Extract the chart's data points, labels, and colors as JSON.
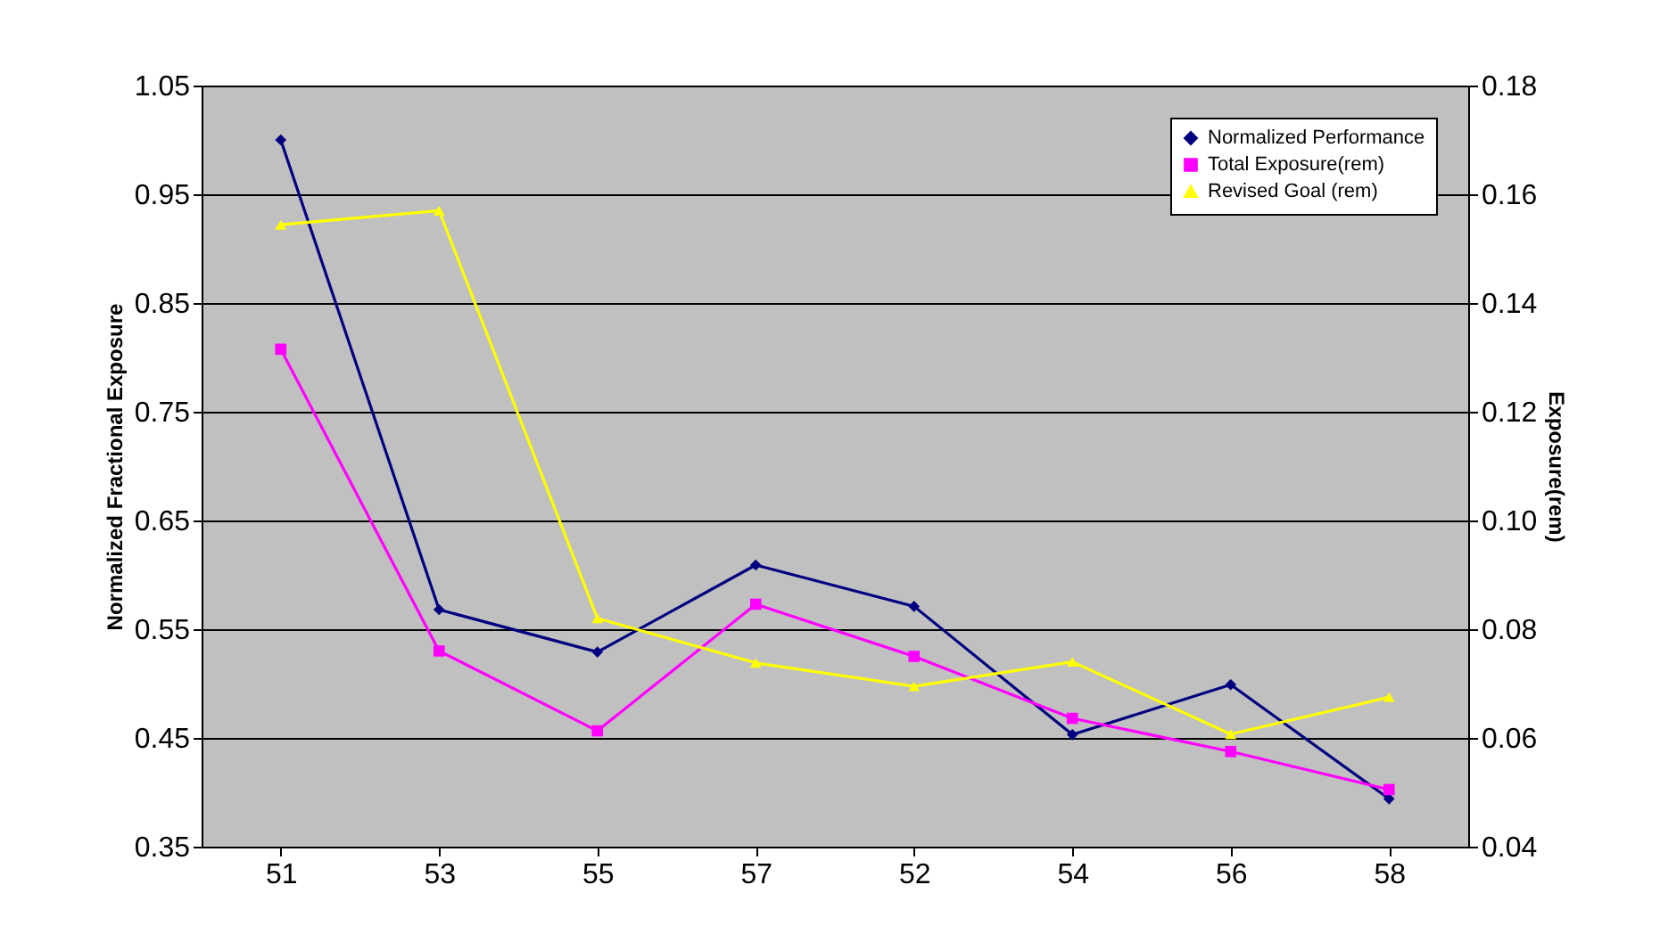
{
  "chart_data": {
    "type": "line",
    "xlabel": null,
    "ylabel": "Normalized Fractional Exposure",
    "y2label": "Exposure(rem)",
    "categories": [
      "51",
      "53",
      "55",
      "57",
      "52",
      "54",
      "56",
      "58"
    ],
    "series": [
      {
        "name": "Normalized Performance",
        "color": "#000080",
        "marker": "diamond",
        "axis": "y",
        "values": [
          1.0,
          0.568,
          0.529,
          0.609,
          0.571,
          0.453,
          0.499,
          0.394
        ]
      },
      {
        "name": "Total Exposure(rem)",
        "color": "#ff00ff",
        "marker": "square",
        "axis": "y2",
        "values": [
          0.1315,
          0.076,
          0.0613,
          0.0846,
          0.075,
          0.0636,
          0.0575,
          0.0505
        ]
      },
      {
        "name": "Revised Goal (rem)",
        "color": "#ffff00",
        "marker": "triangle",
        "axis": "y2",
        "values": [
          0.1544,
          0.157,
          0.082,
          0.0738,
          0.0695,
          0.074,
          0.0607,
          0.0675
        ]
      }
    ],
    "ylim": [
      0.35,
      1.05
    ],
    "yticks": [
      0.35,
      0.45,
      0.55,
      0.65,
      0.75,
      0.85,
      0.95,
      1.05
    ],
    "y2lim": [
      0.04,
      0.18
    ],
    "y2ticks": [
      {
        "value": 0.04,
        "label": "0.04"
      },
      {
        "value": 0.06,
        "label": "0.06"
      },
      {
        "value": 0.08,
        "label": "0.08"
      },
      {
        "value": 0.1,
        "label": "0.10"
      },
      {
        "value": 0.12,
        "label": "0.12"
      },
      {
        "value": 0.14,
        "label": "0.14"
      },
      {
        "value": 0.16,
        "label": "0.16"
      },
      {
        "value": 0.18,
        "label": "0.18"
      }
    ],
    "grid": "y",
    "legend": "top right",
    "line_style": "solid"
  }
}
